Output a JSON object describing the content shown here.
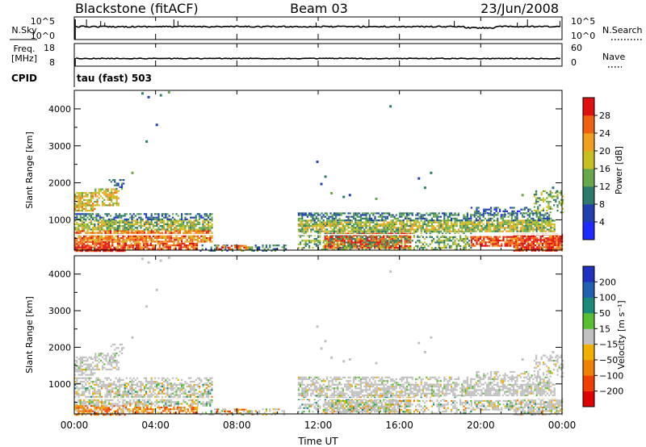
{
  "header": {
    "station": "Blackstone (fitACF)",
    "beam": "Beam 03",
    "date": "23/Jun/2008"
  },
  "panels": {
    "nsky": {
      "left_label": "N.Sky",
      "right_label": "N.Search",
      "left_ticks": [
        "10^5",
        "10^0"
      ],
      "right_ticks": [
        "10^5",
        "10^0"
      ]
    },
    "freq": {
      "left_label_1": "Freq.",
      "left_label_2": "[MHz]",
      "right_label": "Nave",
      "left_ticks": [
        "18",
        "8"
      ],
      "right_ticks": [
        "60",
        "0"
      ]
    },
    "cpid": {
      "label": "CPID",
      "value": "tau (fast) 503"
    }
  },
  "chart_data": [
    {
      "type": "heatmap",
      "name": "power",
      "ylabel": "Slant Range [km]",
      "yticks": [
        "1000",
        "2000",
        "3000",
        "4000"
      ],
      "ylim": [
        180,
        4500
      ],
      "xlim_hours": [
        0,
        24
      ],
      "colorbar": {
        "label": "Power [dB]",
        "ticks": [
          "4",
          "8",
          "12",
          "16",
          "20",
          "24",
          "28"
        ],
        "colors": [
          "#1e2aff",
          "#2040b0",
          "#2e7a6a",
          "#66a84a",
          "#c8c020",
          "#f0a020",
          "#f06010",
          "#e01010"
        ]
      }
    },
    {
      "type": "heatmap",
      "name": "velocity",
      "ylabel": "Slant Range [km]",
      "yticks": [
        "1000",
        "2000",
        "3000",
        "4000"
      ],
      "ylim": [
        180,
        4500
      ],
      "xlim_hours": [
        0,
        24
      ],
      "colorbar": {
        "label": "Velocity [m s⁻¹]",
        "ticks": [
          "200",
          "100",
          "50",
          "15",
          "−15",
          "−50",
          "−100",
          "−200"
        ],
        "colors": [
          "#2030c0",
          "#2060b0",
          "#1a8a7a",
          "#58c030",
          "#c0c0c0",
          "#f0b000",
          "#f08000",
          "#f04000",
          "#e00000"
        ]
      }
    }
  ],
  "xaxis": {
    "ticks": [
      "00:00",
      "04:00",
      "08:00",
      "12:00",
      "16:00",
      "20:00",
      "00:00"
    ],
    "label": "Time UT"
  }
}
